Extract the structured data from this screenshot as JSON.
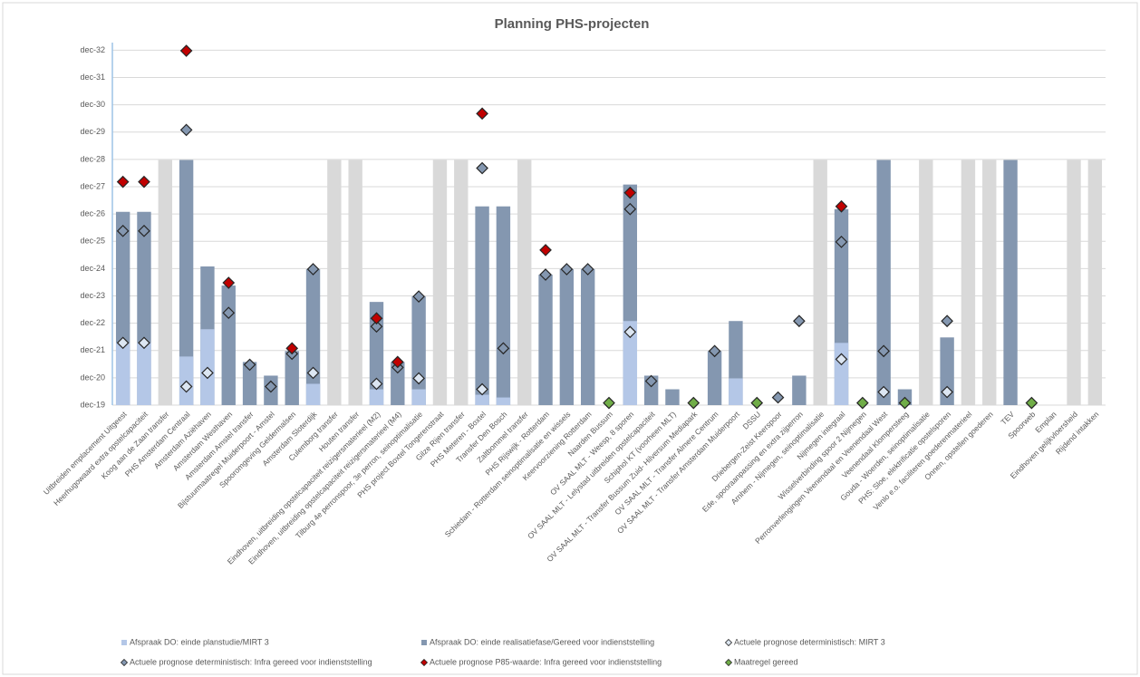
{
  "chart_data": {
    "type": "bar",
    "title": "Planning PHS-projecten",
    "categories": [
      "Uitbreiden emplacement Uitgeest",
      "Heerhugowaard extra opstelcapaciteit",
      "Koog aan de Zaan transfer",
      "PHS Amsterdam Centraal",
      "Amsterdam Aziëhaven",
      "Amsterdam Westhaven",
      "Amsterdam Amstel transfer",
      "Bijstuurmaatregel Muiderpoort - Amstel",
      "Spooromgeving Geldermalsen",
      "Amsterdam Sloterdijk",
      "Culemborg transfer",
      "Houten transfer",
      "Eindhoven, uitbreiding opstelcapaciteit reizigersmaterieel (M2)",
      "Eindhoven, uitbreiding opstelcapaciteit reizigersmaterieel (M4)",
      "Tilburg 4e perronspoor, 3e perron, seinoptimalisatie",
      "PHS project Boxtel Tongerenstraat",
      "Gilze Rijen transfer",
      "PHS Meteren - Boxtel",
      "Transfer Den Bosch",
      "Zaltbommel transfer",
      "PHS Rijswijk - Rotterdam",
      "Schiedam - Rotterdam seinoptimalisatie en wissels",
      "Keervoorziening Rotterdam",
      "Naarden Bussum",
      "OV SAAL MLT - Weesp, 8 sporen",
      "OV SAAL MLT - Lelystad uitbreiden opstelcapaciteit",
      "Schiphol KT (voorheen MLT)",
      "OV SAAL MLT - Transfer Bussum Zuid- Hilversum Mediapark",
      "OV SAAL MLT - Transfer Almere Centrum",
      "OV SAAL MLT - Transfer Amsterdam Muiderpoort",
      "DSSU",
      "Driebergen-Zeist Keerspoor",
      "Ede, spooraanpassing en extra zijperron",
      "Arnhem - Nijmegen, seinoptimalisatie",
      "Nijmegen integraal",
      "Wisselverbinding spoor 2 Nijmegen",
      "Perronverlengingen Veenendaal en Veenendaal West",
      "Veenendaal Klompersteeg",
      "Gouda - Woerden, seinoptimalisatie",
      "PHS: Sloe, elektrificatie opstelsporen",
      "Venlo e.o. faciliteren goederenmaterieel",
      "Onnen, opstellen goederen",
      "TEV",
      "Spoorweb",
      "Emplan",
      "Eindhoven gelijkvloersheid",
      "Rijdend intakken"
    ],
    "series": [
      {
        "color": "#d9d9d9",
        "type": "bar",
        "values": [
          null,
          null,
          2028.9,
          null,
          null,
          null,
          null,
          null,
          null,
          null,
          2028.9,
          2028.9,
          null,
          null,
          null,
          2028.9,
          2028.9,
          null,
          null,
          2028.9,
          null,
          null,
          null,
          null,
          null,
          null,
          null,
          null,
          null,
          null,
          null,
          null,
          null,
          2028.9,
          null,
          null,
          null,
          null,
          2028.9,
          null,
          2028.9,
          2028.9,
          null,
          null,
          null,
          2028.9,
          2028.9
        ]
      },
      {
        "name": "Afspraak DO: einde realisatiefase/Gereed voor indienststelling",
        "color": "#8497b0",
        "type": "bar",
        "values": [
          2027.0,
          2027.0,
          null,
          2028.9,
          2025.0,
          2024.3,
          2021.5,
          2021.0,
          2021.9,
          2024.9,
          null,
          null,
          2023.7,
          2021.5,
          2023.9,
          null,
          null,
          2027.2,
          2027.2,
          null,
          2024.7,
          2024.9,
          2024.9,
          null,
          2028.0,
          2021.0,
          2020.5,
          null,
          2021.9,
          2023.0,
          null,
          null,
          2021.0,
          null,
          2027.1,
          null,
          2028.9,
          2020.5,
          null,
          2022.4,
          null,
          null,
          2028.9,
          null,
          null,
          null,
          null
        ]
      },
      {
        "name": "Afspraak DO: einde planstudie/MIRT 3",
        "color": "#b4c7e7",
        "type": "bar",
        "values": [
          2022.2,
          2022.2,
          null,
          2021.7,
          2022.7,
          null,
          null,
          null,
          null,
          2020.7,
          null,
          null,
          2020.5,
          null,
          2020.5,
          null,
          null,
          2020.3,
          2020.2,
          null,
          null,
          null,
          null,
          null,
          2023.0,
          null,
          null,
          null,
          null,
          2020.9,
          null,
          null,
          null,
          null,
          2022.2,
          null,
          null,
          null,
          null,
          null,
          null,
          null,
          null,
          null,
          null,
          null,
          null
        ]
      },
      {
        "name": "Actuele prognose deterministisch: MIRT 3",
        "color": "#dce6f2",
        "type": "scatter",
        "marker": "diamond",
        "values": [
          2022.2,
          2022.2,
          null,
          2020.6,
          2021.1,
          null,
          null,
          null,
          null,
          2021.1,
          null,
          null,
          2020.7,
          null,
          2020.9,
          null,
          null,
          2020.5,
          null,
          null,
          null,
          null,
          null,
          null,
          2022.6,
          null,
          null,
          null,
          null,
          null,
          null,
          null,
          null,
          null,
          2021.6,
          null,
          2020.4,
          null,
          null,
          2020.4,
          null,
          null,
          null,
          null,
          null,
          null,
          null
        ]
      },
      {
        "name": "Actuele prognose deterministisch: Infra gereed voor indienststelling",
        "color": "#8497b0",
        "type": "scatter",
        "marker": "diamond",
        "values": [
          2026.3,
          2026.3,
          null,
          2030.0,
          null,
          2023.3,
          2021.4,
          2020.6,
          2021.8,
          2024.9,
          null,
          null,
          2022.8,
          2021.3,
          2023.9,
          null,
          null,
          2028.6,
          2022.0,
          null,
          2024.7,
          2024.9,
          2024.9,
          null,
          2027.1,
          2020.8,
          null,
          null,
          2021.9,
          null,
          null,
          2020.2,
          2023.0,
          null,
          2025.9,
          null,
          2021.9,
          null,
          null,
          2023.0,
          null,
          null,
          null,
          null,
          null,
          null,
          null
        ]
      },
      {
        "name": "Actuele prognose P85-waarde: Infra gereed voor indienststelling",
        "color": "#c00000",
        "type": "scatter",
        "marker": "diamond",
        "values": [
          2028.1,
          2028.1,
          null,
          2032.9,
          null,
          2024.4,
          null,
          null,
          2022.0,
          null,
          null,
          null,
          2023.1,
          2021.5,
          null,
          null,
          null,
          2030.6,
          null,
          null,
          2025.6,
          null,
          null,
          null,
          2027.7,
          null,
          null,
          null,
          null,
          null,
          null,
          null,
          null,
          null,
          2027.2,
          null,
          null,
          null,
          null,
          null,
          null,
          null,
          null,
          null,
          null,
          null,
          null
        ]
      },
      {
        "name": "Maatregel gereed",
        "color": "#70ad47",
        "type": "scatter",
        "marker": "diamond",
        "values": [
          null,
          null,
          null,
          null,
          null,
          null,
          null,
          null,
          null,
          null,
          null,
          null,
          null,
          null,
          null,
          null,
          null,
          null,
          null,
          null,
          null,
          null,
          null,
          2020.0,
          null,
          null,
          null,
          2020.0,
          null,
          null,
          2020.0,
          null,
          null,
          null,
          null,
          2020.0,
          null,
          2020.0,
          null,
          null,
          null,
          null,
          null,
          2020.0,
          null,
          null,
          null
        ]
      }
    ],
    "ylim": [
      2019.92,
      2033.2
    ],
    "yticks": [
      {
        "value": 2019.92,
        "label": "dec-19"
      },
      {
        "value": 2020.92,
        "label": "dec-20"
      },
      {
        "value": 2021.92,
        "label": "dec-21"
      },
      {
        "value": 2022.92,
        "label": "dec-22"
      },
      {
        "value": 2023.92,
        "label": "dec-23"
      },
      {
        "value": 2024.92,
        "label": "dec-24"
      },
      {
        "value": 2025.92,
        "label": "dec-25"
      },
      {
        "value": 2026.92,
        "label": "dec-26"
      },
      {
        "value": 2027.92,
        "label": "dec-27"
      },
      {
        "value": 2028.92,
        "label": "dec-28"
      },
      {
        "value": 2029.92,
        "label": "dec-29"
      },
      {
        "value": 2030.92,
        "label": "dec-30"
      },
      {
        "value": 2031.92,
        "label": "dec-31"
      },
      {
        "value": 2032.92,
        "label": "dec-32"
      }
    ],
    "grid": true,
    "legend": "bottom"
  }
}
